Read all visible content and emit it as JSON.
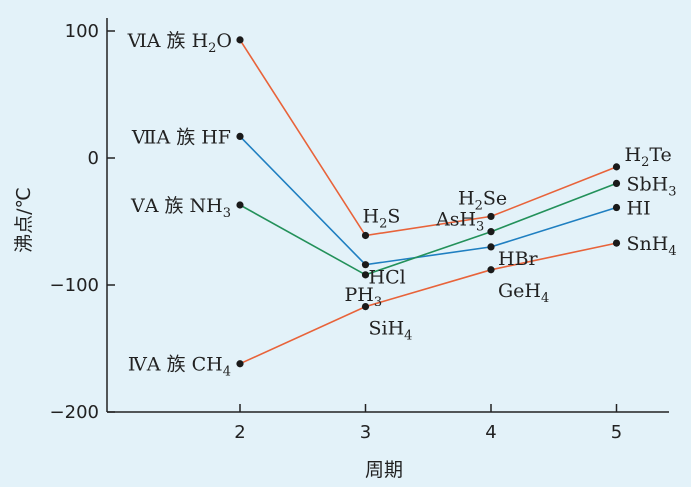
{
  "chart_data": {
    "type": "line",
    "xlabel": "周期",
    "ylabel": "沸点/℃",
    "x": [
      2,
      3,
      4,
      5
    ],
    "xlim": [
      1,
      5.4
    ],
    "ylim": [
      -200,
      110
    ],
    "xticks": [
      "2",
      "3",
      "4",
      "5"
    ],
    "yticks": [
      "100",
      "0",
      "−100",
      "−200"
    ],
    "yticks_values": [
      100,
      0,
      -100,
      -200
    ],
    "grid": false,
    "series": [
      {
        "name": "ⅥA 族 H₂O",
        "color": "#e8633a",
        "values": [
          93,
          -61,
          -46,
          -7
        ],
        "labels": [
          "H₂O",
          "H₂S",
          "H₂Se",
          "H₂Te"
        ]
      },
      {
        "name": "ⅦA 族 HF",
        "color": "#1f7fc1",
        "values": [
          17,
          -84,
          -70,
          -39
        ],
        "labels": [
          "HF",
          "HCl",
          "HBr",
          "HI"
        ]
      },
      {
        "name": "ⅤA 族 NH₃",
        "color": "#23915a",
        "values": [
          -37,
          -92,
          -58,
          -20
        ],
        "labels": [
          "NH₃",
          "PH₃",
          "AsH₃",
          "SbH₃"
        ]
      },
      {
        "name": "ⅣA 族 CH₄",
        "color": "#e8633a",
        "values": [
          -162,
          -117,
          -88,
          -67
        ],
        "labels": [
          "CH₄",
          "SiH₄",
          "GeH₄",
          "SnH₄"
        ]
      }
    ]
  }
}
